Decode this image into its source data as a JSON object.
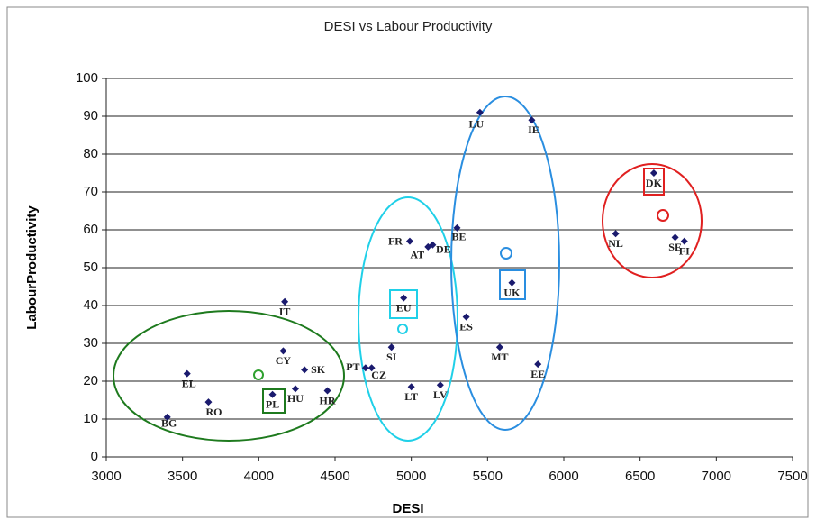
{
  "chart_data": {
    "type": "scatter",
    "title": "DESI vs Labour Productivity",
    "xlabel": "DESI",
    "ylabel": "LabourProductivity",
    "labels": [
      "BG",
      "EL",
      "RO",
      "IT",
      "CY",
      "SK",
      "PL",
      "HU",
      "HR",
      "PT",
      "CZ",
      "SI",
      "EU",
      "LT",
      "LV",
      "FR",
      "AT",
      "DE",
      "BE",
      "LU",
      "IE",
      "ES",
      "MT",
      "EE",
      "UK",
      "NL",
      "DK",
      "SE",
      "FI"
    ],
    "x": [
      3400,
      3530,
      3670,
      4170,
      4160,
      4300,
      4090,
      4240,
      4450,
      4700,
      4740,
      4870,
      4950,
      5000,
      5190,
      4990,
      5110,
      5140,
      5300,
      5450,
      5790,
      5360,
      5580,
      5830,
      5660,
      6340,
      6590,
      6730,
      6790
    ],
    "values": [
      10.5,
      22,
      14.5,
      41,
      28,
      23,
      16.5,
      18,
      17.5,
      23.5,
      23.5,
      29,
      42,
      18.5,
      19,
      57,
      55.5,
      56,
      60.5,
      91,
      89,
      37,
      29,
      24.5,
      46,
      59,
      75,
      58,
      57
    ],
    "color": "#1a1a6e",
    "xlim": [
      3000,
      7500
    ],
    "xticks": [
      3000,
      3500,
      4000,
      4500,
      5000,
      5500,
      6000,
      6500,
      7000,
      7500
    ],
    "ylim": [
      0,
      100
    ],
    "yticks": [
      0,
      10,
      20,
      30,
      40,
      50,
      60,
      70,
      80,
      90,
      100
    ],
    "grid": true
  }
}
